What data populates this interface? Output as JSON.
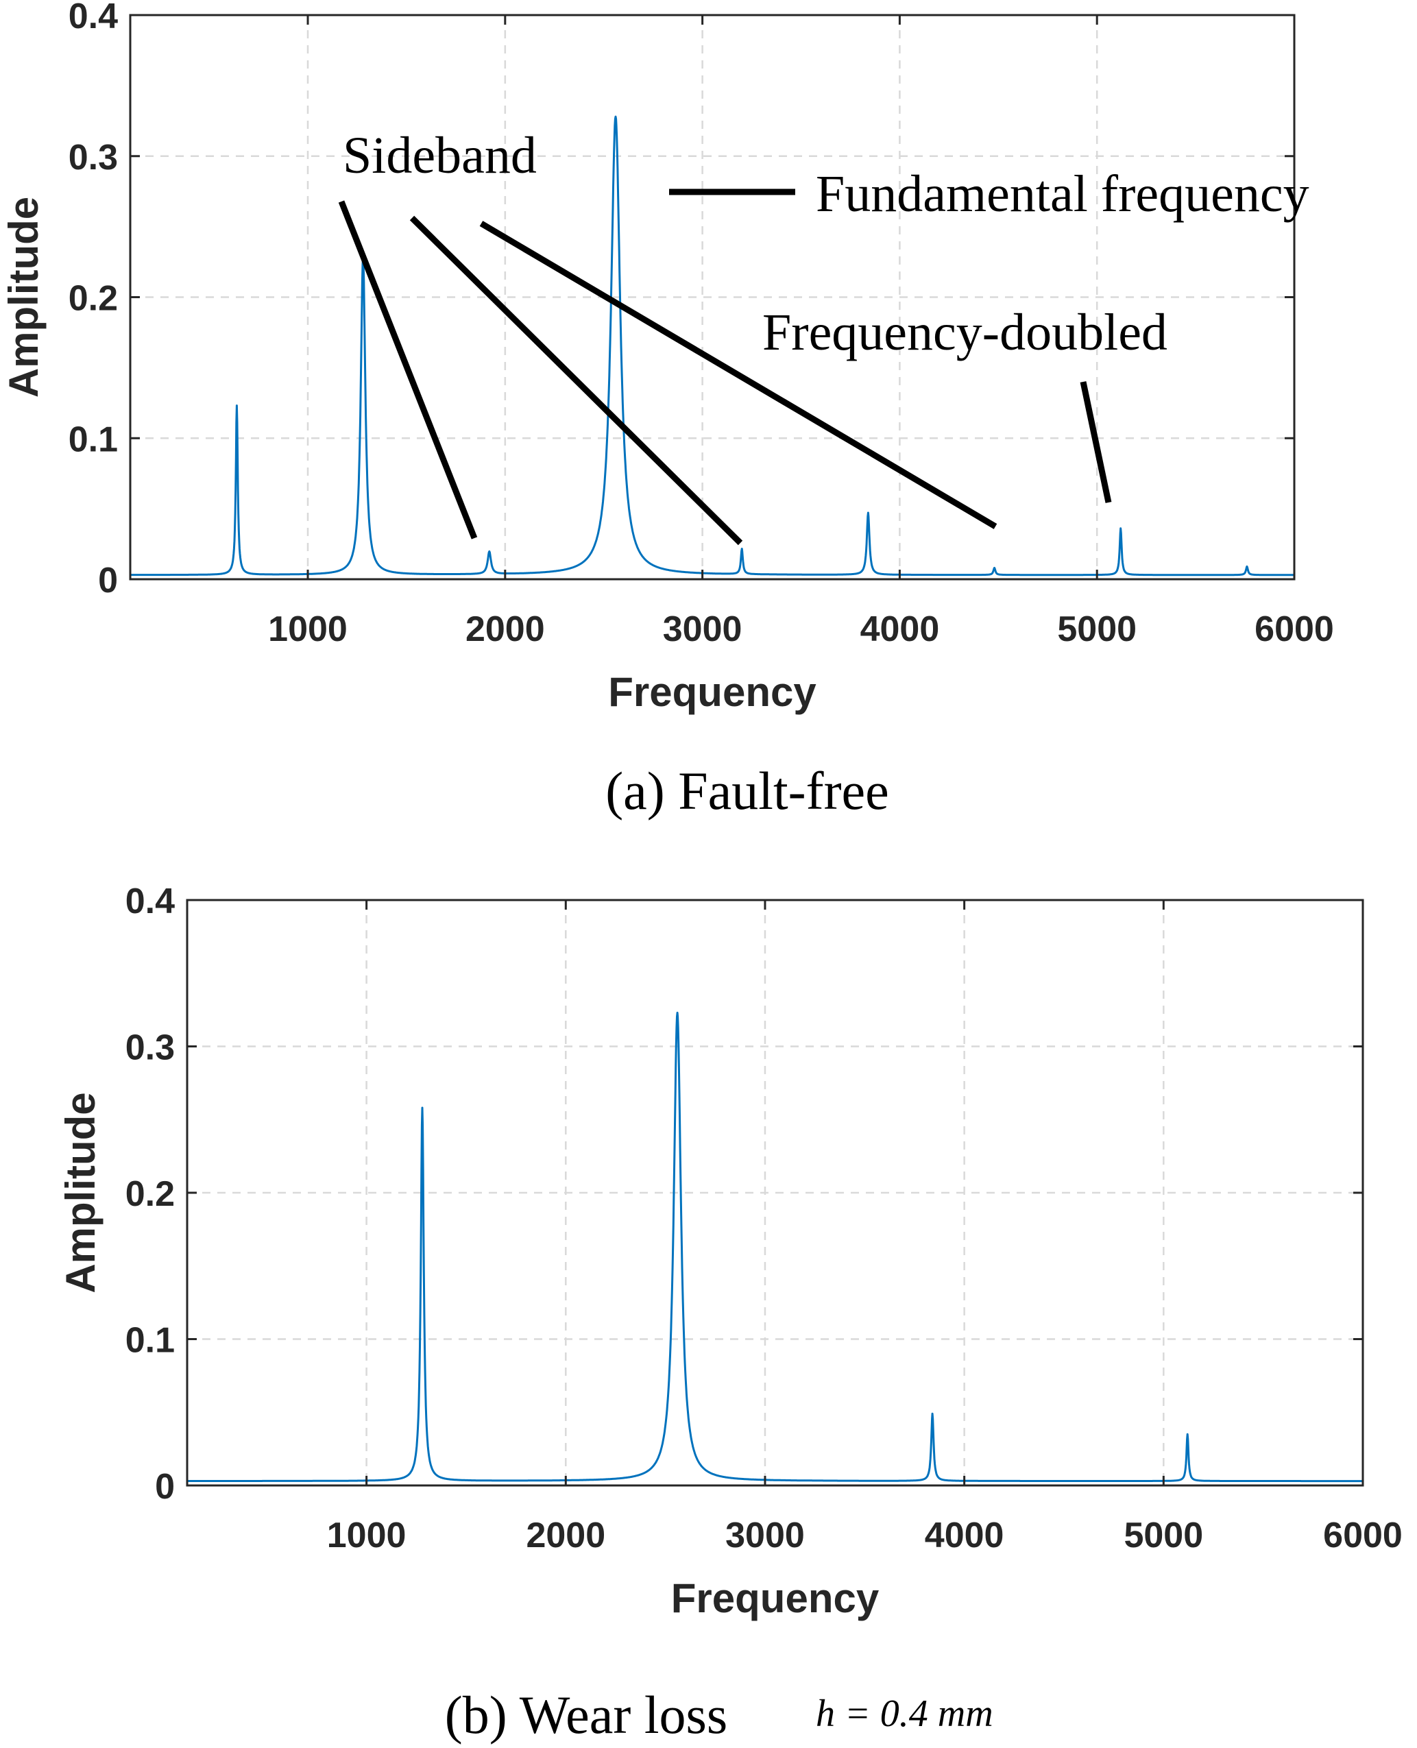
{
  "colors": {
    "series": "#0072BD",
    "axis": "#262626",
    "grid": "#d9d9d9",
    "annotation": "#000000"
  },
  "chart_data": [
    {
      "type": "line",
      "caption": "(a) Fault-free",
      "xlabel": "Frequency",
      "ylabel": "Amplitude",
      "xlim": [
        100,
        6000
      ],
      "ylim": [
        0,
        0.4
      ],
      "xticks": [
        1000,
        2000,
        3000,
        4000,
        5000,
        6000
      ],
      "yticks": [
        0,
        0.1,
        0.2,
        0.3,
        0.4
      ],
      "xtick_labels": [
        "1000",
        "2000",
        "3000",
        "4000",
        "5000",
        "6000"
      ],
      "ytick_labels": [
        "0",
        "0.1",
        "0.2",
        "0.3",
        "0.4"
      ],
      "grid": true,
      "baseline": 0.003,
      "series": [
        {
          "peaks": [
            {
              "f": 640,
              "a": 0.12,
              "w": 6
            },
            {
              "f": 1280,
              "a": 0.225,
              "w": 14
            },
            {
              "f": 1920,
              "a": 0.016,
              "w": 10
            },
            {
              "f": 2560,
              "a": 0.325,
              "w": 28
            },
            {
              "f": 3200,
              "a": 0.018,
              "w": 6
            },
            {
              "f": 3840,
              "a": 0.044,
              "w": 8
            },
            {
              "f": 4480,
              "a": 0.005,
              "w": 6
            },
            {
              "f": 5120,
              "a": 0.033,
              "w": 6
            },
            {
              "f": 5760,
              "a": 0.006,
              "w": 6
            }
          ]
        }
      ],
      "annotations": {
        "sideband": "Sideband",
        "fundamental": "Fundamental frequency",
        "doubled": "Frequency-doubled"
      }
    },
    {
      "type": "line",
      "caption": "(b) Wear loss",
      "caption_math": "h = 0.4 mm",
      "xlabel": "Frequency",
      "ylabel": "Amplitude",
      "xlim": [
        100,
        6000
      ],
      "ylim": [
        0,
        0.4
      ],
      "xticks": [
        1000,
        2000,
        3000,
        4000,
        5000,
        6000
      ],
      "yticks": [
        0,
        0.1,
        0.2,
        0.3,
        0.4
      ],
      "xtick_labels": [
        "1000",
        "2000",
        "3000",
        "4000",
        "5000",
        "6000"
      ],
      "ytick_labels": [
        "0",
        "0.1",
        "0.2",
        "0.3",
        "0.4"
      ],
      "grid": true,
      "baseline": 0.003,
      "series": [
        {
          "peaks": [
            {
              "f": 1280,
              "a": 0.255,
              "w": 9
            },
            {
              "f": 2560,
              "a": 0.32,
              "w": 22
            },
            {
              "f": 3840,
              "a": 0.046,
              "w": 7
            },
            {
              "f": 5120,
              "a": 0.032,
              "w": 6
            }
          ]
        }
      ]
    }
  ]
}
